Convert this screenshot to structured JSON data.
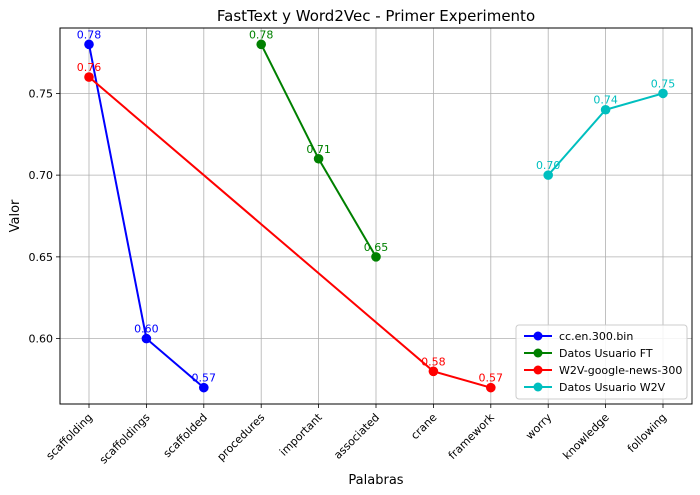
{
  "chart_data": {
    "type": "line",
    "title": "FastText y Word2Vec - Primer Experimento",
    "xlabel": "Palabras",
    "ylabel": "Valor",
    "categories": [
      "scaffolding",
      "scaffoldings",
      "scaffolded",
      "procedures",
      "important",
      "associated",
      "crane",
      "framework",
      "worry",
      "knowledge",
      "following"
    ],
    "ylim": [
      0.56,
      0.79
    ],
    "yticks": [
      "0.60",
      "0.65",
      "0.70",
      "0.75"
    ],
    "grid": true,
    "legend_position": "lower-right",
    "series": [
      {
        "name": "cc.en.300.bin",
        "color": "#0000ff",
        "points": [
          {
            "x": "scaffolding",
            "y": 0.78,
            "label": "0.78"
          },
          {
            "x": "scaffoldings",
            "y": 0.6,
            "label": "0.60"
          },
          {
            "x": "scaffolded",
            "y": 0.57,
            "label": "0.57"
          }
        ]
      },
      {
        "name": "Datos Usuario FT",
        "color": "#008000",
        "points": [
          {
            "x": "procedures",
            "y": 0.78,
            "label": "0.78"
          },
          {
            "x": "important",
            "y": 0.71,
            "label": "0.71"
          },
          {
            "x": "associated",
            "y": 0.65,
            "label": "0.65"
          }
        ]
      },
      {
        "name": "W2V-google-news-300",
        "color": "#ff0000",
        "points": [
          {
            "x": "scaffolding",
            "y": 0.76,
            "label": "0.76"
          },
          {
            "x": "crane",
            "y": 0.58,
            "label": "0.58"
          },
          {
            "x": "framework",
            "y": 0.57,
            "label": "0.57"
          }
        ]
      },
      {
        "name": "Datos Usuario W2V",
        "color": "#00bfbf",
        "points": [
          {
            "x": "worry",
            "y": 0.7,
            "label": "0.70"
          },
          {
            "x": "knowledge",
            "y": 0.74,
            "label": "0.74"
          },
          {
            "x": "following",
            "y": 0.75,
            "label": "0.75"
          }
        ]
      }
    ]
  }
}
